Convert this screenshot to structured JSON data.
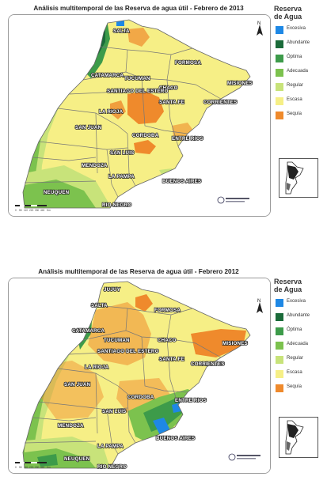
{
  "maps": [
    {
      "title": "Análisis multitemporal de las Reserva de agua útil - Febrero de 2013",
      "legend_title": [
        "Reserva",
        "de Agua"
      ],
      "legend": [
        {
          "label": "Excesiva",
          "color": "#1e88e5"
        },
        {
          "label": "Abundante",
          "color": "#1b6b3a"
        },
        {
          "label": "Óptima",
          "color": "#3d9b4a"
        },
        {
          "label": "Adecuada",
          "color": "#7cc24e"
        },
        {
          "label": "Regular",
          "color": "#c8e37a"
        },
        {
          "label": "Escasa",
          "color": "#f6ef86"
        },
        {
          "label": "Sequía",
          "color": "#ef8a2c"
        }
      ],
      "provinces": [
        "SALTA",
        "FORMOSA",
        "CATAMARCA",
        "TUCUMAN",
        "CHACO",
        "MISIONES",
        "SANTIAGO DEL ESTERO",
        "CORRIENTES",
        "LA RIOJA",
        "SANTA FE",
        "SAN JUAN",
        "CORDOBA",
        "ENTRE RIOS",
        "SAN LUIS",
        "MENDOZA",
        "BUENOS AIRES",
        "LA PAMPA",
        "NEUQUEN",
        "RIO NEGRO"
      ],
      "north_label": "N",
      "scale_ticks": [
        "0",
        "55",
        "110",
        "220",
        "330",
        "440",
        "Km"
      ]
    },
    {
      "title": "Análisis multitemporal de las Reserva de agua útil - Febrero 2012",
      "legend_title": [
        "Reserva",
        "de Agua"
      ],
      "legend": [
        {
          "label": "Excesiva",
          "color": "#1e88e5"
        },
        {
          "label": "Abundante",
          "color": "#1b6b3a"
        },
        {
          "label": "Óptima",
          "color": "#3d9b4a"
        },
        {
          "label": "Adecuada",
          "color": "#7cc24e"
        },
        {
          "label": "Regular",
          "color": "#c8e37a"
        },
        {
          "label": "Escasa",
          "color": "#f6ef86"
        },
        {
          "label": "Sequía",
          "color": "#ef8a2c"
        }
      ],
      "provinces": [
        "JUJUY",
        "SALTA",
        "FORMOSA",
        "CATAMARCA",
        "TUCUMAN",
        "CHACO",
        "MISIONES",
        "SANTIAGO DEL ESTERO",
        "LA RIOJA",
        "SANTA FE",
        "CORRIENTES",
        "SAN JUAN",
        "CORDOBA",
        "ENTRE RIOS",
        "SAN LUIS",
        "MENDOZA",
        "BUENOS AIRES",
        "LA PAMPA",
        "NEUQUEN",
        "RIO NEGRO"
      ],
      "north_label": "N",
      "scale_ticks": [
        "0",
        "55",
        "110",
        "220",
        "330",
        "440",
        "Km"
      ]
    }
  ]
}
